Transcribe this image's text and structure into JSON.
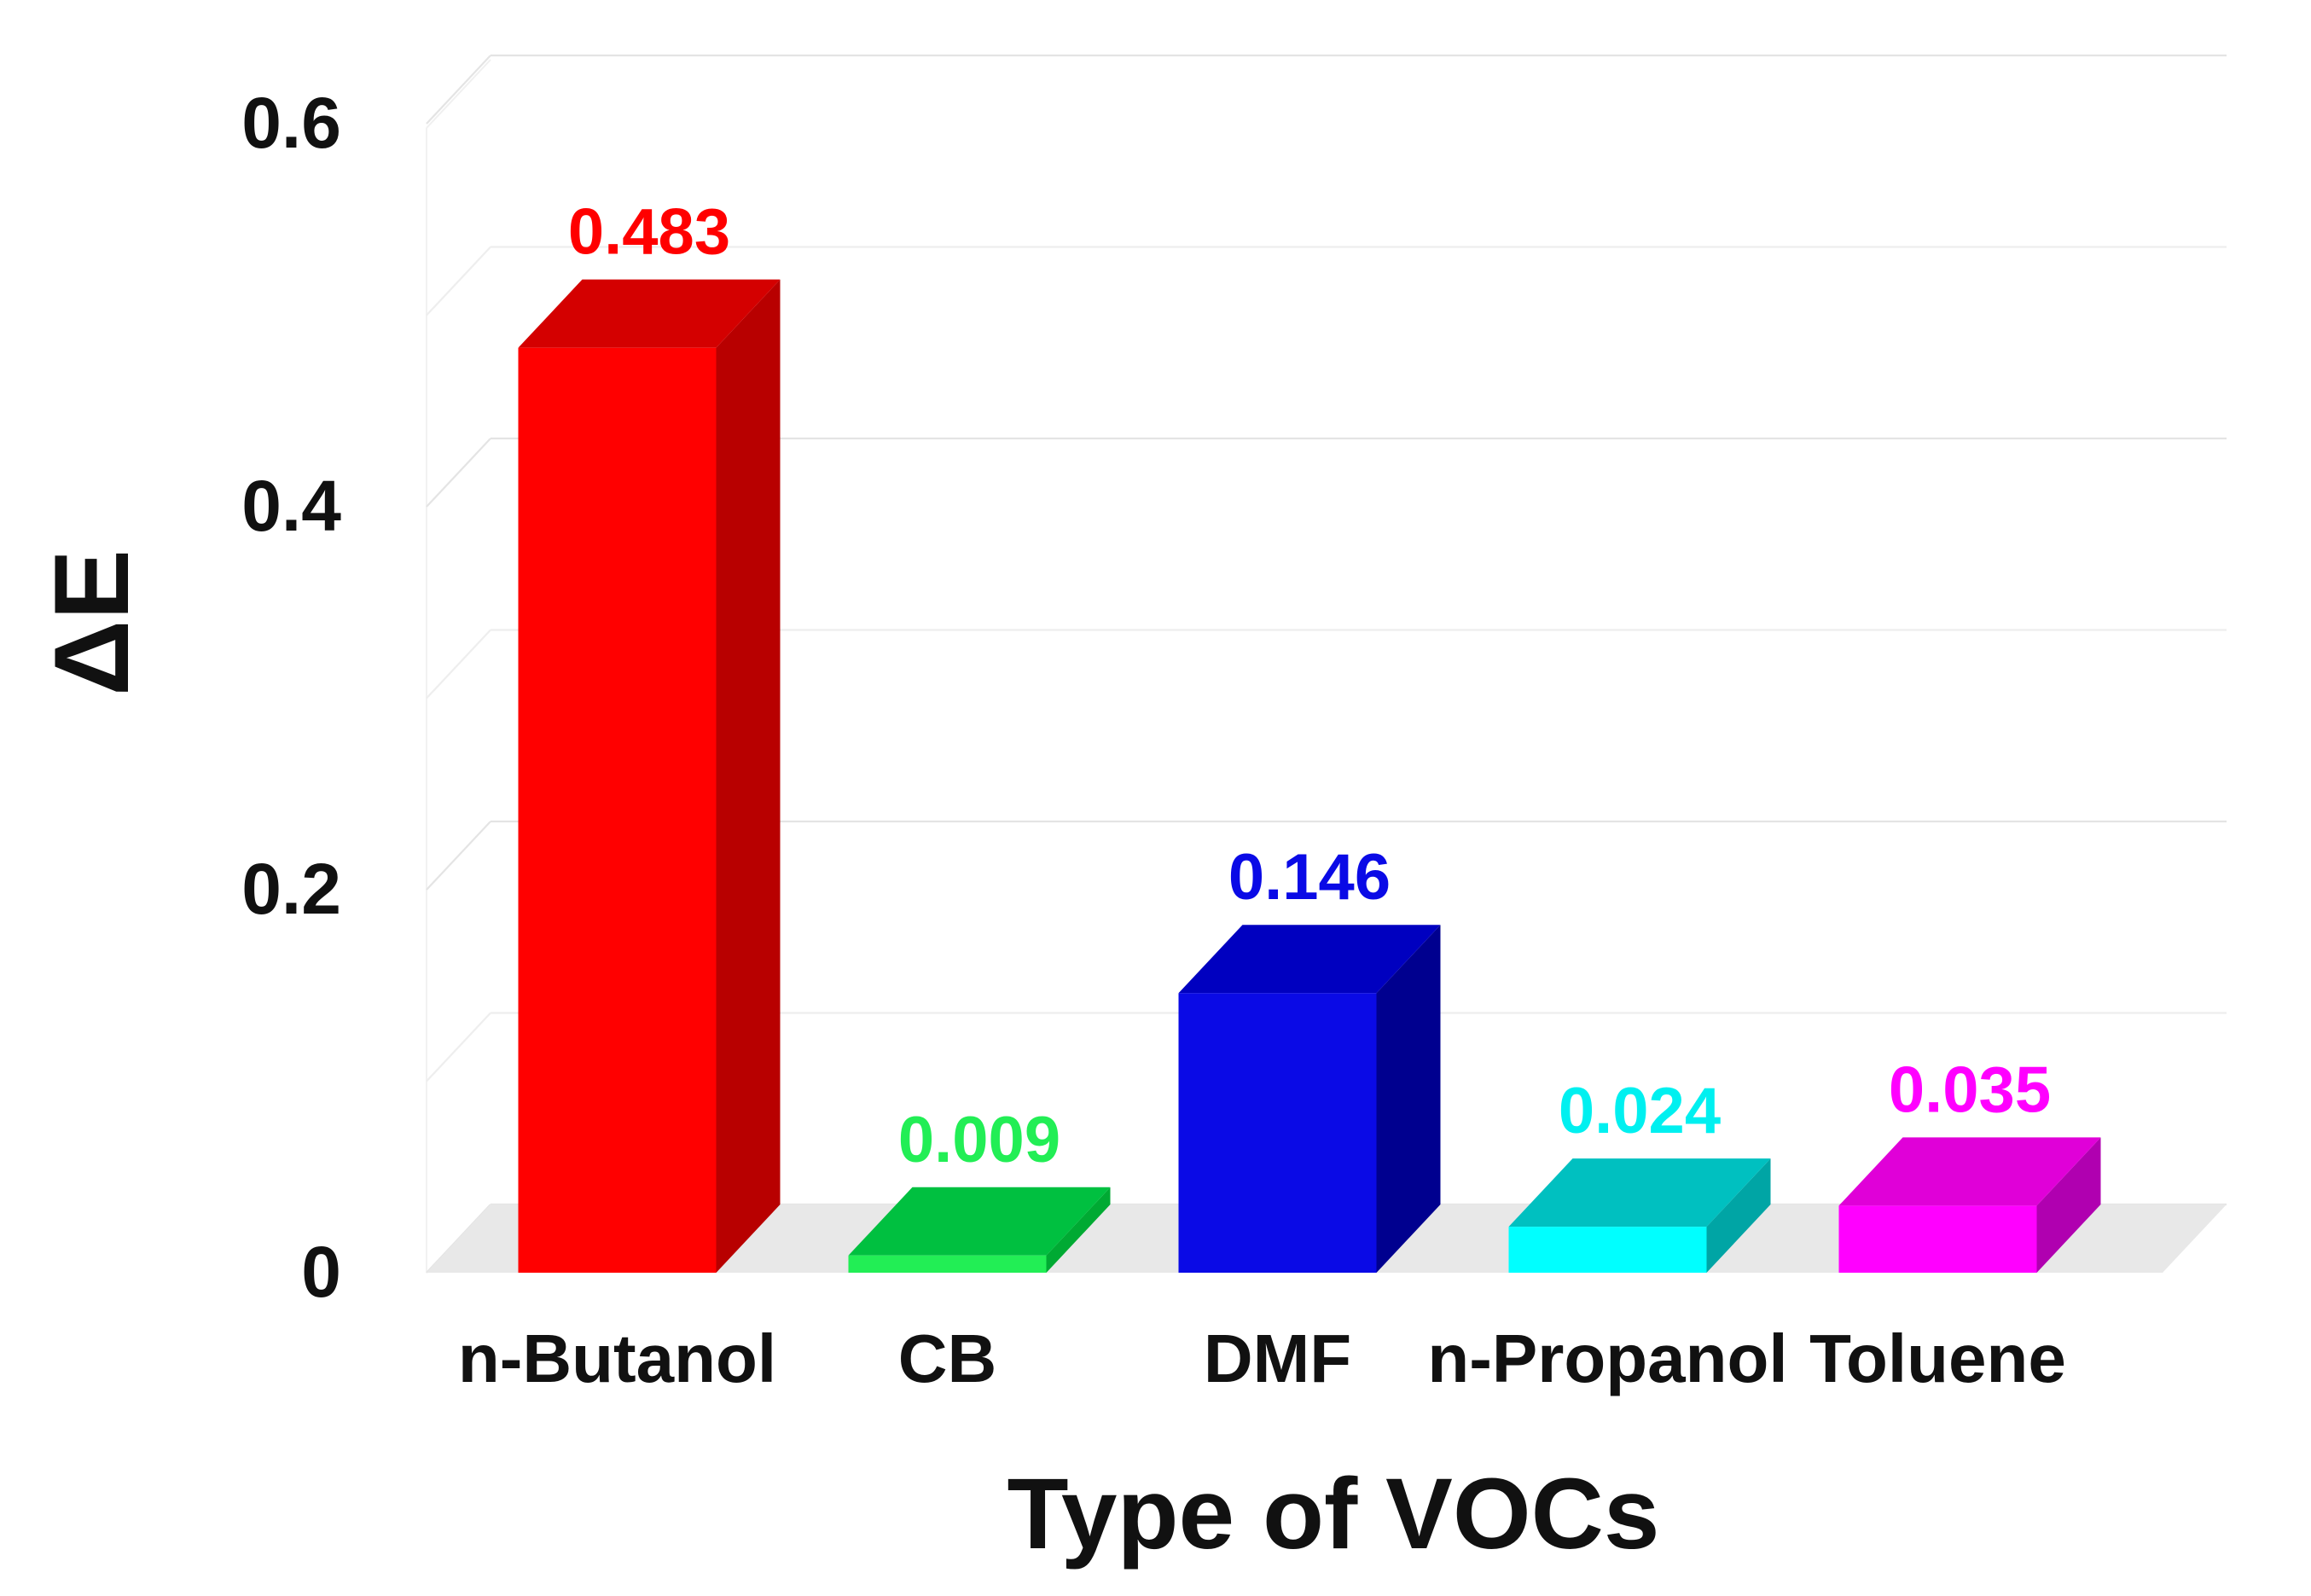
{
  "chart_data": {
    "type": "bar",
    "style": "3d-column",
    "title": "",
    "xlabel": "Type of VOCs",
    "ylabel": "ΔE",
    "ylim": [
      0,
      0.6
    ],
    "yticks": [
      0,
      0.2,
      0.4,
      0.6
    ],
    "ytick_labels": [
      "0",
      "0.2",
      "0.4",
      "0.6"
    ],
    "grid": true,
    "categories": [
      "n-Butanol",
      "CB",
      "DMF",
      "n-Propanol",
      "Toluene"
    ],
    "values": [
      0.483,
      0.009,
      0.146,
      0.024,
      0.035
    ],
    "value_labels": [
      "0.483",
      "0.009",
      "0.146",
      "0.024",
      "0.035"
    ],
    "colors": [
      {
        "front": "#ff0000",
        "side": "#b80000",
        "top": "#d40000",
        "label": "#ff0000"
      },
      {
        "front": "#22ee55",
        "side": "#00aa33",
        "top": "#00c040",
        "label": "#22ee55"
      },
      {
        "front": "#0a0ae6",
        "side": "#00008f",
        "top": "#0000c0",
        "label": "#0a0ae6"
      },
      {
        "front": "#00ffff",
        "side": "#00a5a5",
        "top": "#00c0c0",
        "label": "#00f0f0"
      },
      {
        "front": "#ff00ff",
        "side": "#b000b0",
        "top": "#e000d8",
        "label": "#ff00ff"
      }
    ]
  }
}
